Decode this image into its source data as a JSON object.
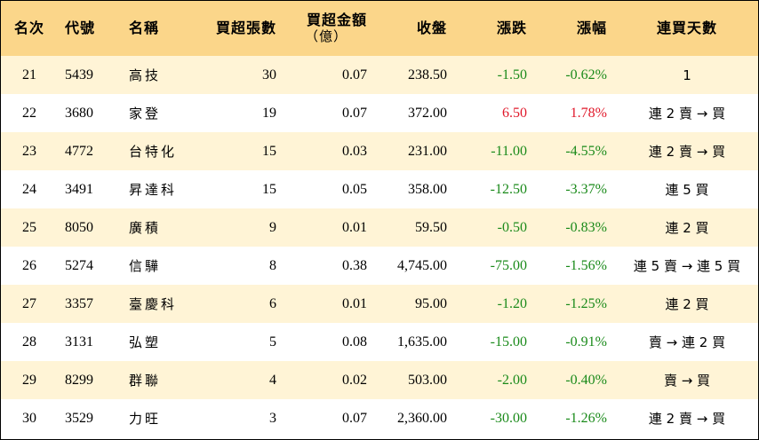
{
  "headers": {
    "rank": "名次",
    "code": "代號",
    "name": "名稱",
    "lots": "買超張數",
    "amount": "買超金額",
    "amount_unit": "（億）",
    "close": "收盤",
    "change": "漲跌",
    "pct": "漲幅",
    "days": "連買天數"
  },
  "colors": {
    "header_bg": "#fbd68a",
    "stripe_bg": "#fff4d6",
    "down": "#1a8a1a",
    "up": "#e0182a"
  },
  "rows": [
    {
      "rank": "21",
      "code": "5439",
      "name": "高技",
      "lots": "30",
      "amount": "0.07",
      "close": "238.50",
      "change": "-1.50",
      "pct": "-0.62%",
      "trend": "down",
      "days": "1"
    },
    {
      "rank": "22",
      "code": "3680",
      "name": "家登",
      "lots": "19",
      "amount": "0.07",
      "close": "372.00",
      "change": "6.50",
      "pct": "1.78%",
      "trend": "up",
      "days": "連 2 賣 → 買"
    },
    {
      "rank": "23",
      "code": "4772",
      "name": "台特化",
      "lots": "15",
      "amount": "0.03",
      "close": "231.00",
      "change": "-11.00",
      "pct": "-4.55%",
      "trend": "down",
      "days": "連 2 賣 → 買"
    },
    {
      "rank": "24",
      "code": "3491",
      "name": "昇達科",
      "lots": "15",
      "amount": "0.05",
      "close": "358.00",
      "change": "-12.50",
      "pct": "-3.37%",
      "trend": "down",
      "days": "連 5 買"
    },
    {
      "rank": "25",
      "code": "8050",
      "name": "廣積",
      "lots": "9",
      "amount": "0.01",
      "close": "59.50",
      "change": "-0.50",
      "pct": "-0.83%",
      "trend": "down",
      "days": "連 2 買"
    },
    {
      "rank": "26",
      "code": "5274",
      "name": "信驊",
      "lots": "8",
      "amount": "0.38",
      "close": "4,745.00",
      "change": "-75.00",
      "pct": "-1.56%",
      "trend": "down",
      "days": "連 5 賣 → 連 5 買"
    },
    {
      "rank": "27",
      "code": "3357",
      "name": "臺慶科",
      "lots": "6",
      "amount": "0.01",
      "close": "95.00",
      "change": "-1.20",
      "pct": "-1.25%",
      "trend": "down",
      "days": "連 2 買"
    },
    {
      "rank": "28",
      "code": "3131",
      "name": "弘塑",
      "lots": "5",
      "amount": "0.08",
      "close": "1,635.00",
      "change": "-15.00",
      "pct": "-0.91%",
      "trend": "down",
      "days": "賣 → 連 2 買"
    },
    {
      "rank": "29",
      "code": "8299",
      "name": "群聯",
      "lots": "4",
      "amount": "0.02",
      "close": "503.00",
      "change": "-2.00",
      "pct": "-0.40%",
      "trend": "down",
      "days": "賣 → 買"
    },
    {
      "rank": "30",
      "code": "3529",
      "name": "力旺",
      "lots": "3",
      "amount": "0.07",
      "close": "2,360.00",
      "change": "-30.00",
      "pct": "-1.26%",
      "trend": "down",
      "days": "連 2 賣 → 買"
    }
  ]
}
